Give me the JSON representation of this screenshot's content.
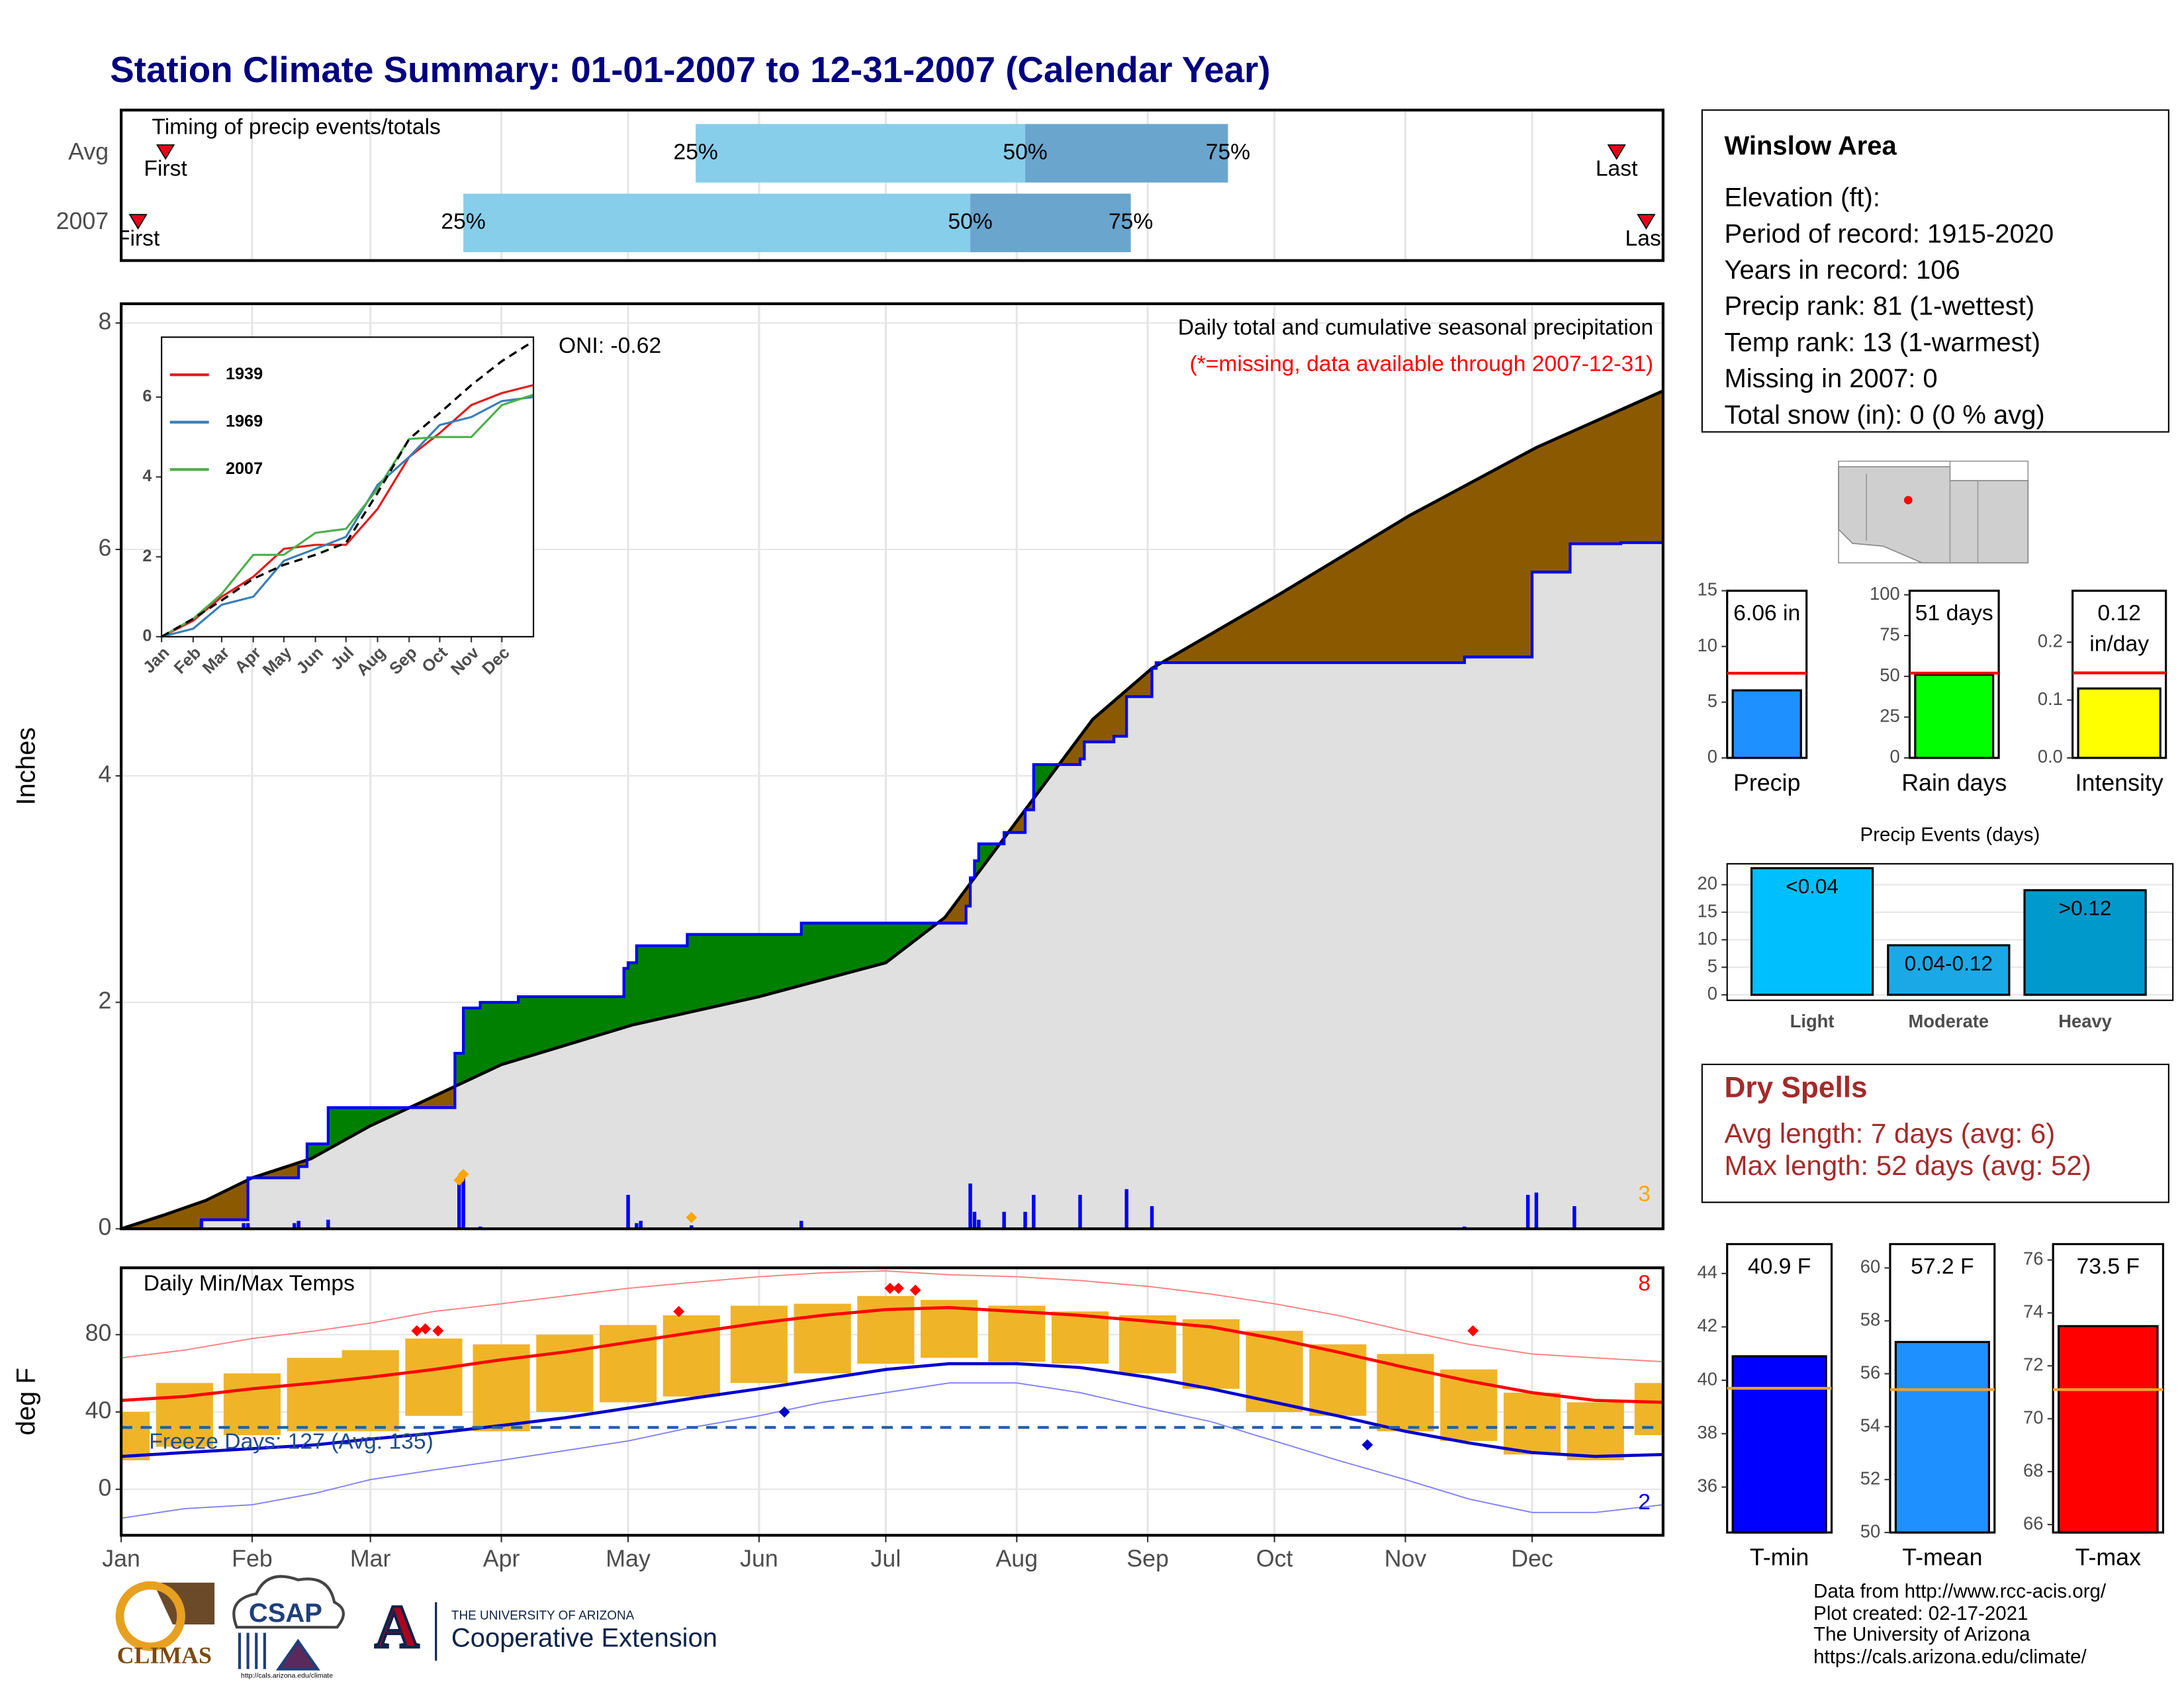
{
  "title": "Station Climate Summary: 01-01-2007 to 12-31-2007 (Calendar Year)",
  "info": {
    "station": "Winslow Area",
    "lines": [
      "Elevation (ft):",
      "Period of record: 1915-2020",
      "Years in record: 106",
      "Precip rank: 81 (1-wettest)",
      "Temp rank: 13 (1-warmest)",
      "Missing in 2007: 0",
      "Total snow (in): 0 (0 % avg)"
    ]
  },
  "dry_spells": {
    "title": "Dry Spells",
    "lines": [
      "Avg length: 7 days (avg: 6)",
      "Max length: 52 days (avg: 52)"
    ]
  },
  "footer": [
    "Data from http://www.rcc-acis.org/",
    "Plot created: 02-17-2021",
    "The University of Arizona",
    "https://cals.arizona.edu/climate/"
  ],
  "logos": {
    "climas": "CLIMAS",
    "csap": "CSAP",
    "csap_url": "http://cals.arizona.edu/climate",
    "ua_letter": "A",
    "ua_small": "THE UNIVERSITY OF ARIZONA",
    "ua_large": "Cooperative Extension"
  },
  "chart_data": [
    {
      "type": "timing",
      "title": "Timing of precip events/totals",
      "xlim": [
        0,
        365
      ],
      "rows": [
        {
          "name": "Avg",
          "first": 10.5,
          "p25": 136,
          "p50": 214,
          "p75": 262,
          "last": 354
        },
        {
          "name": "2007",
          "first": 4,
          "p25": 81,
          "p50": 201,
          "p75": 239,
          "last": 361
        }
      ],
      "markers": [
        "First",
        "Last"
      ],
      "percent_labels": [
        "25%",
        "50%",
        "75%"
      ],
      "colors": [
        "#87ceeb",
        "#6aa5cd"
      ],
      "marker_color": "#e8001c"
    },
    {
      "type": "area",
      "ylabel": "Inches",
      "title": "Daily total and cumulative seasonal precipitation",
      "subtitle": "(*=missing, data available through 2007-12-31)",
      "annotation": "ONI: -0.62",
      "count_label": 3,
      "xlim": [
        0,
        365
      ],
      "ylim": [
        0,
        8.17
      ],
      "yticks": [
        0,
        2,
        4,
        6,
        8
      ],
      "grid": true,
      "fill_colors": {
        "above": "#008000",
        "below": "#8b5a00",
        "base": "#e0e0e0"
      },
      "series": [
        {
          "color": "#000000",
          "x": [
            0,
            10,
            20,
            31,
            45,
            59,
            70,
            90,
            121,
            151,
            181,
            195,
            212,
            230,
            244,
            274,
            305,
            335,
            365
          ],
          "values": [
            0,
            0.12,
            0.25,
            0.45,
            0.62,
            0.91,
            1.1,
            1.45,
            1.8,
            2.05,
            2.35,
            2.75,
            3.6,
            4.5,
            4.95,
            5.6,
            6.3,
            6.9,
            7.4
          ]
        },
        {
          "color": "#0000ff",
          "step": true,
          "x": [
            0,
            19,
            30,
            42,
            44,
            49,
            79,
            81,
            85,
            94,
            119,
            120,
            122,
            134,
            161,
            200,
            201,
            202,
            203,
            209,
            214,
            216,
            227,
            228,
            235,
            238,
            244,
            245,
            318,
            334,
            343,
            355,
            365
          ],
          "values": [
            0,
            0.08,
            0.45,
            0.55,
            0.75,
            1.07,
            1.55,
            1.95,
            2.0,
            2.05,
            2.3,
            2.35,
            2.5,
            2.6,
            2.7,
            2.85,
            3.1,
            3.25,
            3.4,
            3.5,
            3.7,
            4.1,
            4.15,
            4.3,
            4.35,
            4.7,
            4.95,
            5.0,
            5.05,
            5.8,
            6.05,
            6.06,
            6.06
          ]
        }
      ],
      "daily": {
        "color": "#0000ff",
        "x": [
          19,
          29,
          30,
          41,
          42,
          49,
          80,
          81,
          85,
          120,
          122,
          123,
          135,
          161,
          201,
          202,
          203,
          209,
          214,
          216,
          227,
          238,
          244,
          264,
          318,
          333,
          335,
          344
        ],
        "values": [
          0.07,
          0.05,
          0.05,
          0.05,
          0.07,
          0.08,
          0.4,
          0.45,
          0.02,
          0.3,
          0.05,
          0.07,
          0.03,
          0.07,
          0.4,
          0.15,
          0.08,
          0.15,
          0.15,
          0.3,
          0.3,
          0.35,
          0.2,
          0.01,
          0.02,
          0.3,
          0.32,
          0.2
        ]
      },
      "markers": {
        "color": "#ffa500",
        "x": [
          80,
          81,
          135
        ],
        "values": [
          0.43,
          0.48,
          0.1
        ]
      }
    },
    {
      "type": "line",
      "xlim": [
        0,
        365
      ],
      "ylim": [
        0,
        7.5
      ],
      "yticks": [
        0,
        2,
        4,
        6
      ],
      "xticks": [
        {
          "value": 0,
          "label": "Jan"
        },
        {
          "value": 31,
          "label": "Feb"
        },
        {
          "value": 59,
          "label": "Mar"
        },
        {
          "value": 90,
          "label": "Apr"
        },
        {
          "value": 120,
          "label": "May"
        },
        {
          "value": 151,
          "label": "Jun"
        },
        {
          "value": 181,
          "label": "Jul"
        },
        {
          "value": 212,
          "label": "Aug"
        },
        {
          "value": 243,
          "label": "Sep"
        },
        {
          "value": 273,
          "label": "Oct"
        },
        {
          "value": 304,
          "label": "Nov"
        },
        {
          "value": 334,
          "label": "Dec"
        }
      ],
      "x": [
        0,
        31,
        59,
        90,
        120,
        151,
        181,
        212,
        243,
        273,
        304,
        334,
        365
      ],
      "series": [
        {
          "name": "1939",
          "color": "#e41a1c",
          "values": [
            0,
            0.4,
            1.0,
            1.5,
            2.2,
            2.3,
            2.3,
            3.2,
            4.5,
            5.1,
            5.8,
            6.1,
            6.3
          ]
        },
        {
          "name": "1969",
          "color": "#377eb8",
          "values": [
            0,
            0.2,
            0.8,
            1.0,
            1.9,
            2.2,
            2.5,
            3.8,
            4.5,
            5.3,
            5.5,
            5.9,
            6.0
          ]
        },
        {
          "name": "2007",
          "color": "#4daf4a",
          "values": [
            0,
            0.45,
            1.07,
            2.05,
            2.05,
            2.6,
            2.7,
            3.7,
            4.95,
            5.0,
            5.0,
            5.8,
            6.06
          ]
        },
        {
          "color": "#000000",
          "dash": true,
          "values": [
            0,
            0.45,
            0.91,
            1.45,
            1.8,
            2.05,
            2.35,
            3.6,
            4.95,
            5.6,
            6.3,
            6.9,
            7.4
          ]
        }
      ]
    },
    {
      "type": "range",
      "title": "Daily Min/Max Temps",
      "ylabel": "deg F",
      "annotation": "Freeze Days: 127 (Avg: 135)",
      "freeze": 32,
      "high_count": 8,
      "low_count": 2,
      "xlim": [
        0,
        365
      ],
      "ylim": [
        -23.8,
        114.6
      ],
      "yticks": [
        0,
        40,
        80
      ],
      "grid": true,
      "xticks": [
        {
          "value": 0,
          "label": "Jan"
        },
        {
          "value": 31,
          "label": "Feb"
        },
        {
          "value": 59,
          "label": "Mar"
        },
        {
          "value": 90,
          "label": "Apr"
        },
        {
          "value": 120,
          "label": "May"
        },
        {
          "value": 151,
          "label": "Jun"
        },
        {
          "value": 181,
          "label": "Jul"
        },
        {
          "value": 212,
          "label": "Aug"
        },
        {
          "value": 243,
          "label": "Sep"
        },
        {
          "value": 273,
          "label": "Oct"
        },
        {
          "value": 304,
          "label": "Nov"
        },
        {
          "value": 334,
          "label": "Dec"
        }
      ],
      "x": [
        0,
        15,
        31,
        46,
        59,
        74,
        90,
        105,
        120,
        135,
        151,
        166,
        181,
        196,
        212,
        227,
        243,
        258,
        273,
        288,
        304,
        319,
        334,
        349,
        365
      ],
      "series": [
        {
          "color": "#ff8080",
          "thin": true,
          "values": [
            68,
            72,
            78,
            82,
            86,
            92,
            96,
            100,
            104,
            107,
            110,
            112,
            113,
            111,
            110,
            108,
            105,
            101,
            96,
            90,
            82,
            75,
            70,
            68,
            66
          ]
        },
        {
          "color": "#8080ff",
          "thin": true,
          "values": [
            -15,
            -10,
            -8,
            -2,
            5,
            10,
            15,
            20,
            25,
            32,
            38,
            45,
            50,
            55,
            55,
            50,
            42,
            35,
            25,
            15,
            5,
            -5,
            -12,
            -12,
            -8
          ]
        },
        {
          "color": "#ff0000",
          "values": [
            46,
            48,
            52,
            55,
            58,
            62,
            67,
            71,
            76,
            81,
            86,
            90,
            93,
            94,
            92,
            90,
            87,
            84,
            78,
            71,
            63,
            56,
            50,
            46,
            45
          ]
        },
        {
          "color": "#0000cd",
          "values": [
            17,
            19,
            21,
            23,
            26,
            29,
            33,
            37,
            42,
            47,
            52,
            57,
            62,
            65,
            65,
            63,
            58,
            52,
            45,
            38,
            30,
            24,
            19,
            17,
            18
          ]
        }
      ],
      "bars": {
        "color": "#f0b429",
        "low": [
          15,
          22,
          28,
          30,
          30,
          38,
          30,
          40,
          45,
          48,
          55,
          60,
          65,
          68,
          66,
          65,
          60,
          52,
          40,
          38,
          30,
          25,
          18,
          15,
          28
        ],
        "high": [
          40,
          55,
          60,
          68,
          72,
          78,
          75,
          80,
          85,
          90,
          95,
          96,
          100,
          98,
          95,
          92,
          90,
          88,
          82,
          75,
          70,
          62,
          50,
          45,
          55
        ]
      },
      "record_highs": {
        "color": "#ff0000",
        "x": [
          70,
          72,
          75,
          132,
          182,
          184,
          188,
          320
        ],
        "values": [
          82,
          83,
          82,
          92,
          104,
          104,
          103,
          82
        ]
      },
      "record_lows": {
        "color": "#0000cd",
        "x": [
          157,
          295
        ],
        "values": [
          40,
          23
        ]
      }
    },
    {
      "type": "gauge",
      "xlabel": "Precip",
      "value": 6.06,
      "value_label": "6.06 in",
      "average": 7.6,
      "color": "#1e90ff",
      "avg_color": "#ff0000",
      "ylim": [
        0,
        15
      ],
      "yticks": [
        0,
        5,
        10,
        15
      ]
    },
    {
      "type": "gauge",
      "xlabel": "Rain days",
      "value": 51,
      "value_label": "51 days",
      "average": 52,
      "color": "#00ff00",
      "avg_color": "#ff0000",
      "ylim": [
        0,
        102.5
      ],
      "yticks": [
        0,
        25,
        50,
        75,
        100
      ]
    },
    {
      "type": "gauge",
      "xlabel": "Intensity",
      "value": 0.12,
      "value_label": [
        "0.12",
        "in/day"
      ],
      "average": 0.147,
      "color": "#ffff00",
      "avg_color": "#ff0000",
      "ylim": [
        0,
        0.289
      ],
      "yticks": [
        {
          "value": 0,
          "label": "0.0"
        },
        0.1,
        0.2
      ]
    },
    {
      "type": "bar",
      "title": "Precip Events (days)",
      "categories": [
        "Light",
        "Moderate",
        "Heavy"
      ],
      "values": [
        23,
        9,
        19
      ],
      "bar_labels": [
        "<0.04",
        "0.04-0.12",
        ">0.12"
      ],
      "colors": [
        "#00bfff",
        "#1aa9e6",
        "#0099cc"
      ],
      "ylim": [
        -1,
        23.8
      ],
      "yticks": [
        0,
        5,
        10,
        15,
        20
      ],
      "grid": true
    },
    {
      "type": "gauge",
      "xlabel": "T-min",
      "value": 40.9,
      "value_label": "40.9 F",
      "average": 39.7,
      "color": "#0000ff",
      "avg_color": "#f0a030",
      "ylim": [
        34.3,
        45.1
      ],
      "yticks": [
        36,
        38,
        40,
        42,
        44
      ]
    },
    {
      "type": "gauge",
      "xlabel": "T-mean",
      "value": 57.2,
      "value_label": "57.2 F",
      "average": 55.4,
      "color": "#1e90ff",
      "avg_color": "#f0a030",
      "ylim": [
        50,
        60.9
      ],
      "yticks": [
        50,
        52,
        54,
        56,
        58,
        60
      ]
    },
    {
      "type": "gauge",
      "xlabel": "T-max",
      "value": 73.5,
      "value_label": "73.5 F",
      "average": 71.1,
      "color": "#ff0000",
      "avg_color": "#f0a030",
      "ylim": [
        65.7,
        76.6
      ],
      "yticks": [
        66,
        68,
        70,
        72,
        74,
        76
      ]
    }
  ]
}
